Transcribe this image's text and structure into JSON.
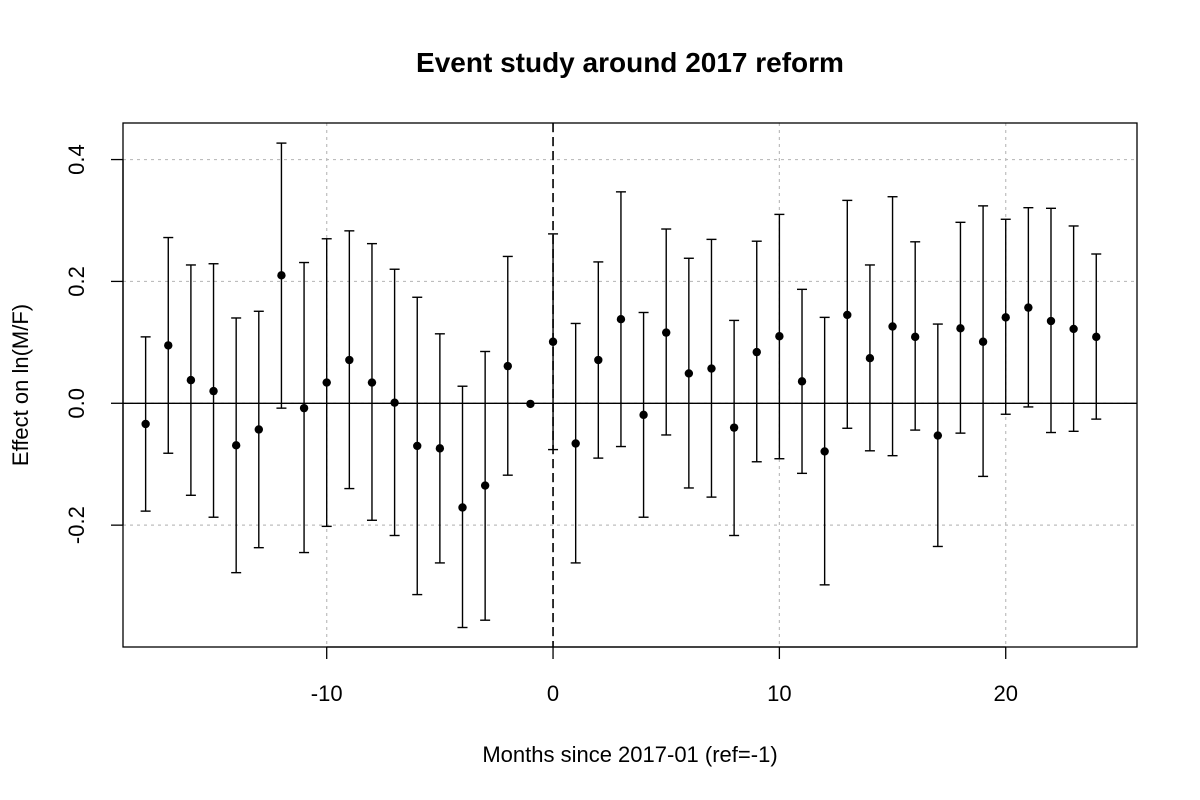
{
  "chart_data": {
    "type": "scatter",
    "title": "Event study around 2017 reform",
    "xlabel": "Months since 2017-01 (ref=-1)",
    "ylabel": "Effect on ln(M/F)",
    "xlim": [
      -19.0,
      25.8
    ],
    "ylim": [
      -0.4,
      0.46
    ],
    "x_ticks": [
      -10,
      0,
      10,
      20
    ],
    "y_ticks": [
      -0.2,
      0.0,
      0.2,
      0.4
    ],
    "x_tick_labels": [
      "-10",
      "0",
      "10",
      "20"
    ],
    "y_tick_labels": [
      "-0.2",
      "0.0",
      "0.2",
      "0.4"
    ],
    "grid": true,
    "reference_hline": 0.0,
    "event_vline": 0,
    "series": [
      {
        "x": [
          -18,
          -17,
          -16,
          -15,
          -14,
          -13,
          -12,
          -11,
          -10,
          -9,
          -8,
          -7,
          -6,
          -5,
          -4,
          -3,
          -2,
          -1,
          0,
          1,
          2,
          3,
          4,
          5,
          6,
          7,
          8,
          9,
          10,
          11,
          12,
          13,
          14,
          15,
          16,
          17,
          18,
          19,
          20,
          21,
          22,
          23,
          24
        ],
        "estimate": [
          -0.034,
          0.095,
          0.038,
          0.02,
          -0.069,
          -0.043,
          0.21,
          -0.008,
          0.034,
          0.071,
          0.034,
          0.001,
          -0.07,
          -0.074,
          -0.171,
          -0.135,
          0.061,
          -0.001,
          0.101,
          -0.066,
          0.071,
          0.138,
          -0.019,
          0.116,
          0.049,
          0.057,
          -0.04,
          0.084,
          0.11,
          0.036,
          -0.079,
          0.145,
          0.074,
          0.126,
          0.109,
          -0.053,
          0.123,
          0.101,
          0.141,
          0.157,
          0.135,
          0.122,
          0.109
        ],
        "lower": [
          -0.177,
          -0.082,
          -0.151,
          -0.187,
          -0.278,
          -0.237,
          -0.008,
          -0.245,
          -0.202,
          -0.14,
          -0.192,
          -0.217,
          -0.314,
          -0.262,
          -0.368,
          -0.356,
          -0.118,
          -0.001,
          -0.076,
          -0.262,
          -0.09,
          -0.071,
          -0.187,
          -0.052,
          -0.139,
          -0.154,
          -0.217,
          -0.096,
          -0.091,
          -0.115,
          -0.298,
          -0.041,
          -0.078,
          -0.086,
          -0.044,
          -0.235,
          -0.049,
          -0.12,
          -0.018,
          -0.006,
          -0.048,
          -0.046,
          -0.026
        ],
        "upper": [
          0.109,
          0.272,
          0.227,
          0.229,
          0.14,
          0.151,
          0.427,
          0.231,
          0.27,
          0.283,
          0.262,
          0.22,
          0.174,
          0.114,
          0.028,
          0.085,
          0.241,
          -0.001,
          0.278,
          0.131,
          0.232,
          0.347,
          0.149,
          0.286,
          0.238,
          0.269,
          0.136,
          0.266,
          0.31,
          0.187,
          0.141,
          0.333,
          0.227,
          0.339,
          0.265,
          0.13,
          0.297,
          0.324,
          0.302,
          0.321,
          0.32,
          0.291,
          0.245
        ]
      }
    ]
  }
}
